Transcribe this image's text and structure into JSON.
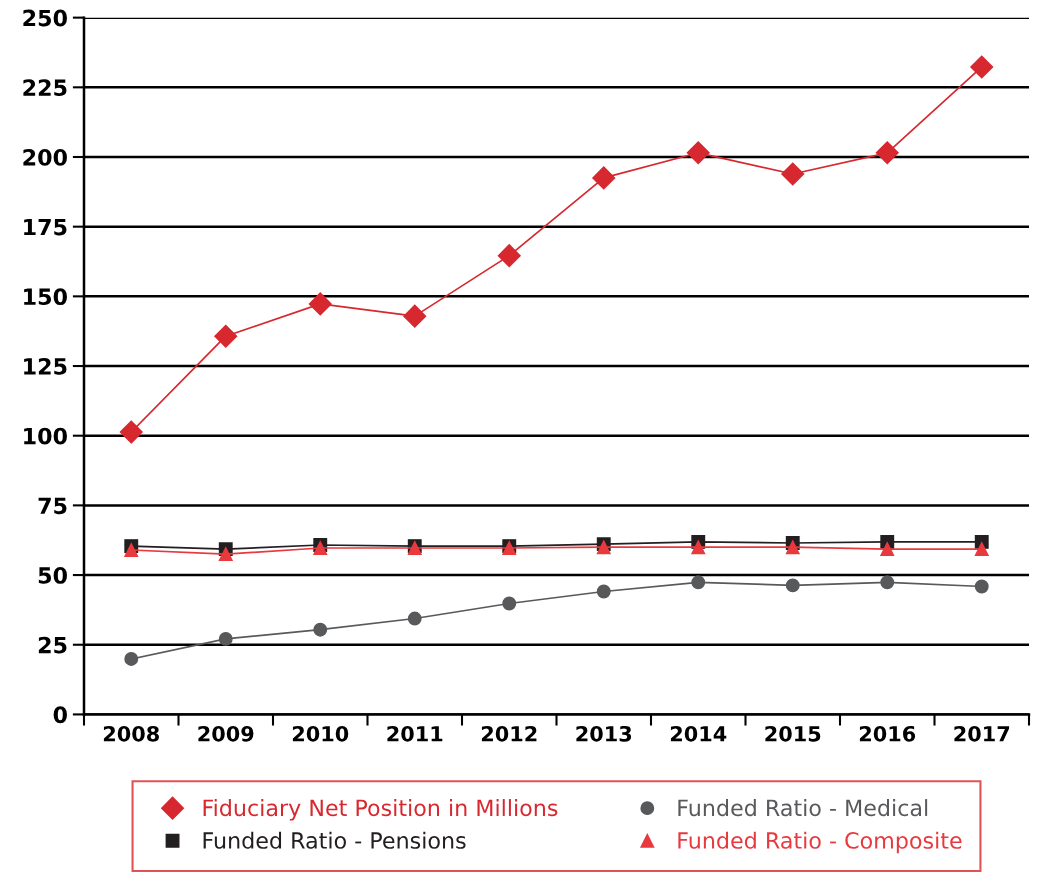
{
  "chart_data": {
    "type": "line",
    "categories": [
      "2008",
      "2009",
      "2010",
      "2011",
      "2012",
      "2013",
      "2014",
      "2015",
      "2016",
      "2017"
    ],
    "series": [
      {
        "name": "Fiduciary Net Position in Millions",
        "color": "#d7282f",
        "marker": "diamond",
        "values": [
          101.3,
          135.7,
          147.3,
          142.9,
          164.6,
          192.5,
          201.5,
          193.9,
          201.5,
          232.3
        ]
      },
      {
        "name": "Funded Ratio - Pensions",
        "color": "#231f20",
        "marker": "square",
        "values": [
          60.4,
          59.3,
          60.8,
          60.4,
          60.4,
          61.1,
          61.9,
          61.5,
          61.9,
          61.9
        ]
      },
      {
        "name": "Funded Ratio - Medical",
        "color": "#58595b",
        "marker": "circle",
        "values": [
          19.9,
          27.1,
          30.4,
          34.4,
          39.8,
          44.1,
          47.4,
          46.3,
          47.4,
          45.9
        ]
      },
      {
        "name": "Funded Ratio - Composite",
        "color": "#e8393f",
        "marker": "triangle",
        "values": [
          59.0,
          57.5,
          59.7,
          59.7,
          59.7,
          60.0,
          60.0,
          60.0,
          59.3,
          59.3
        ]
      }
    ],
    "ylim": [
      0,
      250
    ],
    "yticks": [
      0,
      25,
      50,
      75,
      100,
      125,
      150,
      175,
      200,
      225,
      250
    ],
    "grid": "y",
    "legend": "bottom"
  }
}
